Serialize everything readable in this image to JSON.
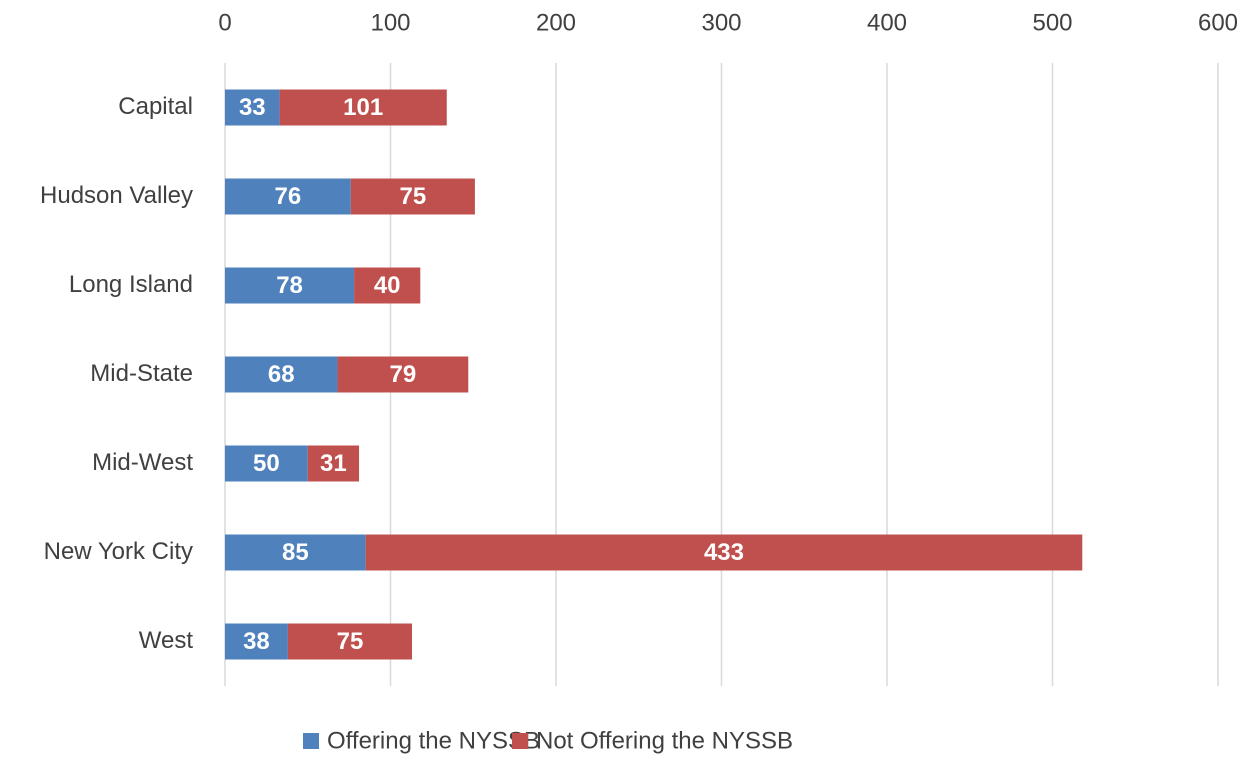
{
  "chart_data": {
    "type": "bar",
    "orientation": "horizontal",
    "stacked": true,
    "categories": [
      "Capital",
      "Hudson Valley",
      "Long Island",
      "Mid-State",
      "Mid-West",
      "New York City",
      "West"
    ],
    "series": [
      {
        "name": "Offering the NYSSB",
        "color": "#4f81bd",
        "values": [
          33,
          76,
          78,
          68,
          50,
          85,
          38
        ]
      },
      {
        "name": "Not Offering the NYSSB",
        "color": "#c0504d",
        "values": [
          101,
          75,
          40,
          79,
          31,
          433,
          75
        ]
      }
    ],
    "xlim": [
      0,
      600
    ],
    "xticks": [
      0,
      100,
      200,
      300,
      400,
      500,
      600
    ],
    "grid": true,
    "legend": "bottom"
  }
}
